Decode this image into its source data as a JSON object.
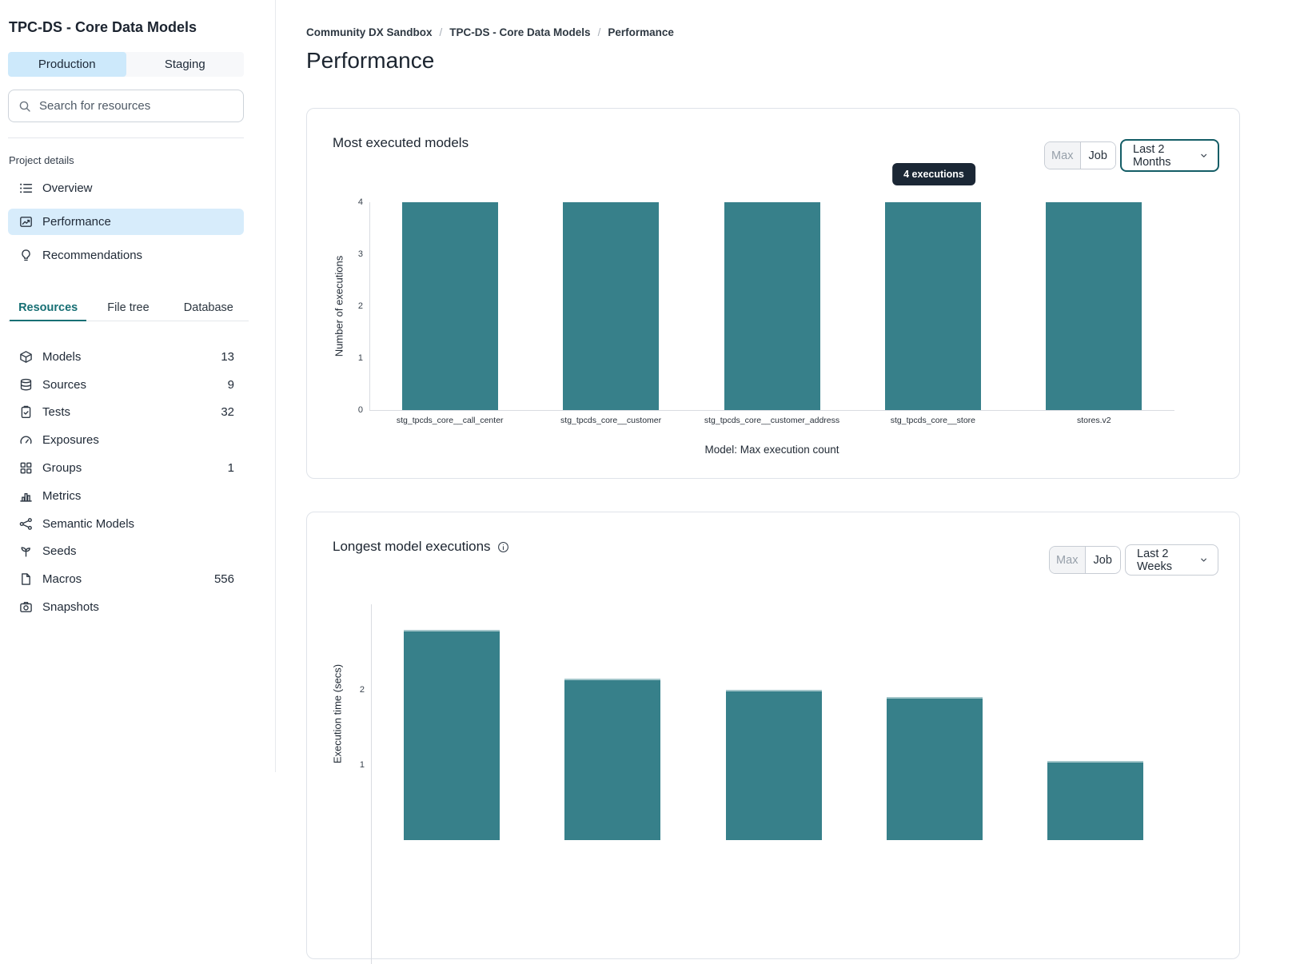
{
  "sidebar": {
    "title": "TPC-DS - Core Data Models",
    "env_tabs": [
      {
        "label": "Production",
        "active": true
      },
      {
        "label": "Staging",
        "active": false
      }
    ],
    "search_placeholder": "Search for resources",
    "section_label": "Project details",
    "nav": [
      {
        "label": "Overview",
        "icon": "list-icon",
        "active": false
      },
      {
        "label": "Performance",
        "icon": "chart-line-icon",
        "active": true
      },
      {
        "label": "Recommendations",
        "icon": "lightbulb-icon",
        "active": false
      }
    ],
    "tabs": [
      {
        "label": "Resources",
        "active": true
      },
      {
        "label": "File tree",
        "active": false
      },
      {
        "label": "Database",
        "active": false
      }
    ],
    "resources": [
      {
        "label": "Models",
        "icon": "cube-icon",
        "count": "13"
      },
      {
        "label": "Sources",
        "icon": "database-icon",
        "count": "9"
      },
      {
        "label": "Tests",
        "icon": "clipboard-check-icon",
        "count": "32"
      },
      {
        "label": "Exposures",
        "icon": "gauge-icon",
        "count": ""
      },
      {
        "label": "Groups",
        "icon": "grid-icon",
        "count": "1"
      },
      {
        "label": "Metrics",
        "icon": "bar-chart-icon",
        "count": ""
      },
      {
        "label": "Semantic Models",
        "icon": "semantic-nodes-icon",
        "count": ""
      },
      {
        "label": "Seeds",
        "icon": "seedling-icon",
        "count": ""
      },
      {
        "label": "Macros",
        "icon": "document-icon",
        "count": "556"
      },
      {
        "label": "Snapshots",
        "icon": "camera-icon",
        "count": ""
      }
    ]
  },
  "main": {
    "breadcrumb": [
      "Community DX Sandbox",
      "TPC-DS - Core Data Models",
      "Performance"
    ],
    "page_title": "Performance",
    "cards": [
      {
        "title": "Most executed models",
        "controls": {
          "max": "Max",
          "job": "Job",
          "range": "Last 2 Months"
        },
        "tooltip": "4 executions"
      },
      {
        "title": "Longest model executions",
        "has_info_icon": true,
        "controls": {
          "max": "Max",
          "job": "Job",
          "range": "Last 2 Weeks"
        }
      }
    ]
  },
  "chart_data": [
    {
      "type": "bar",
      "title": "Most executed models",
      "categories": [
        "stg_tpcds_core__call_center",
        "stg_tpcds_core__customer",
        "stg_tpcds_core__customer_address",
        "stg_tpcds_core__store",
        "stores.v2"
      ],
      "values": [
        4,
        4,
        4,
        4,
        4
      ],
      "xlabel": "Model: Max execution count",
      "ylabel": "Number of executions",
      "ylim": [
        0,
        4
      ],
      "yticks": [
        0,
        1,
        2,
        3,
        4
      ],
      "bar_color": "#37808a",
      "grid": false,
      "tooltip_value": "4 executions"
    },
    {
      "type": "bar",
      "title": "Longest model executions",
      "values": [
        2.8,
        2.15,
        2.0,
        1.9,
        1.05
      ],
      "ylabel": "Execution time (secs)",
      "ylim": [
        0,
        3
      ],
      "yticks": [
        1,
        2
      ],
      "bar_color": "#37808a",
      "grid": false
    }
  ],
  "colors": {
    "accent_teal": "#176f74",
    "bar_teal": "#37808a",
    "active_blue": "#d7ecfb",
    "tooltip_bg": "#1b2735",
    "dropdown_focus_border": "#145d66"
  }
}
